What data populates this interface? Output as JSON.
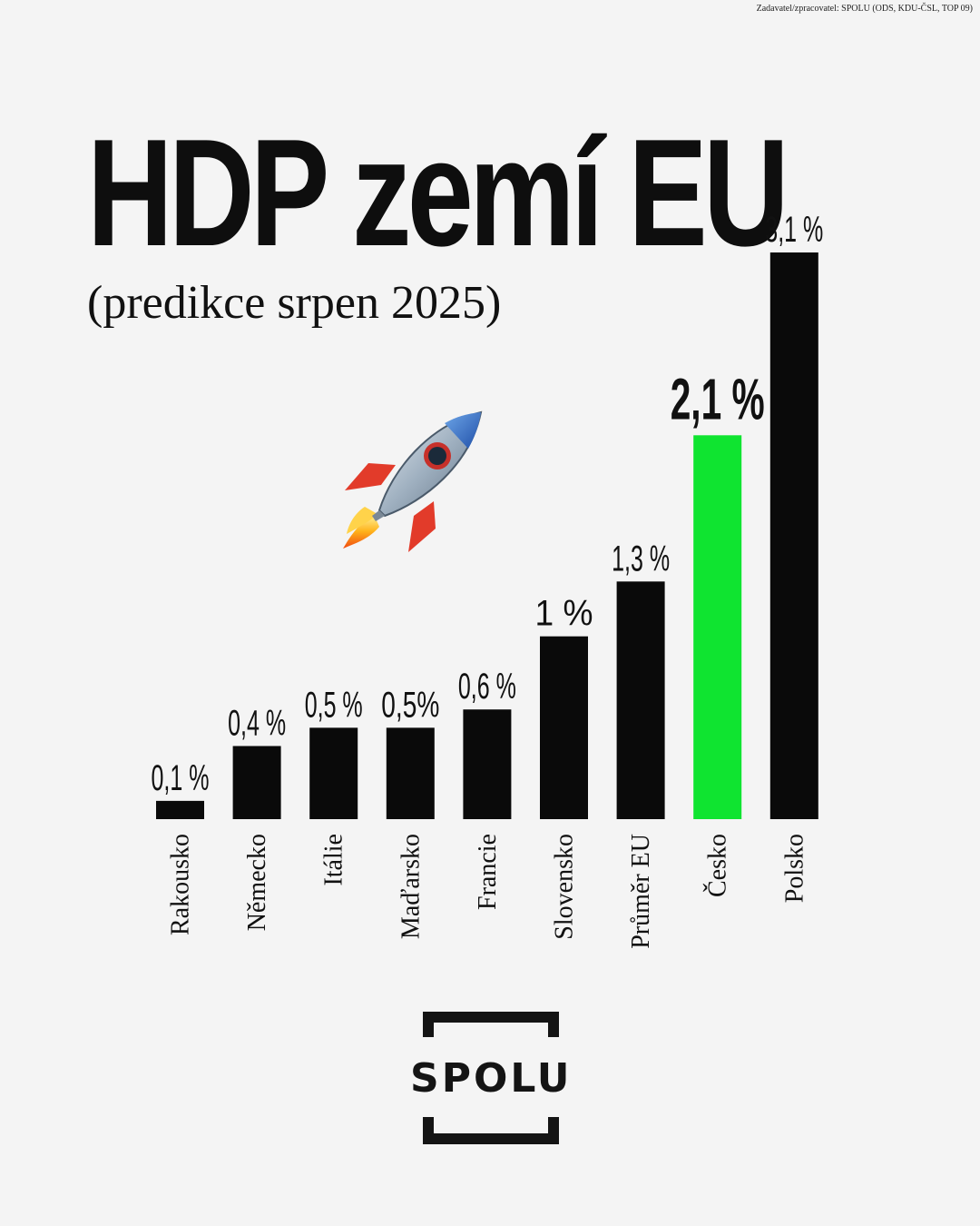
{
  "disclaimer": "Zadavatel/zpracovatel: SPOLU (ODS, KDU-ČSL, TOP 09)",
  "logo_text": "SPOLU",
  "colors": {
    "bar": "#0a0a0a",
    "highlight": "#0fe430",
    "background": "#f4f4f4"
  },
  "chart_data": {
    "type": "bar",
    "title": "HDP zemí EU",
    "subtitle": "(predikce srpen 2025)",
    "xlabel": "",
    "ylabel": "",
    "ylim": [
      0,
      3.1
    ],
    "grid": false,
    "categories": [
      "Rakousko",
      "Německo",
      "Itálie",
      "Maďarsko",
      "Francie",
      "Slovensko",
      "Průměr EU",
      "Česko",
      "Polsko"
    ],
    "values": [
      0.1,
      0.4,
      0.5,
      0.5,
      0.6,
      1.0,
      1.3,
      2.1,
      3.1
    ],
    "value_labels": [
      "0,1 %",
      "0,4 %",
      "0,5 %",
      "0,5%",
      "0,6 %",
      "1 %",
      "1,3 %",
      "2,1 %",
      "3,1 %"
    ],
    "highlight_category": "Česko"
  }
}
